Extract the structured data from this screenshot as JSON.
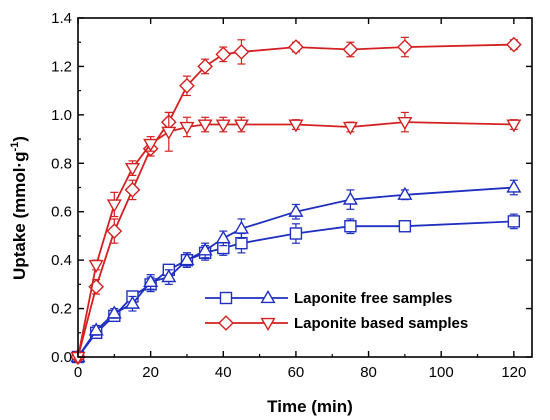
{
  "chart_data": {
    "type": "line",
    "xlabel": "Time (min)",
    "ylabel_main": "Uptake (mmol·g",
    "ylabel_sup": "-1",
    "ylabel_close": ")",
    "xlim": [
      0,
      125
    ],
    "ylim": [
      0,
      1.4
    ],
    "xticks": [
      0,
      20,
      40,
      60,
      80,
      100,
      120
    ],
    "yticks": [
      0.0,
      0.2,
      0.4,
      0.6,
      0.8,
      1.0,
      1.2,
      1.4
    ],
    "xtick_labels": [
      "0",
      "20",
      "40",
      "60",
      "80",
      "100",
      "120"
    ],
    "ytick_labels": [
      "0.0",
      "0.2",
      "0.4",
      "0.6",
      "0.8",
      "1.0",
      "1.2",
      "1.4"
    ],
    "legend_placement": "bottom-right",
    "series": [
      {
        "marker": "square",
        "color": "#1f2fbf",
        "x": [
          0,
          5,
          10,
          15,
          20,
          25,
          30,
          35,
          40,
          45,
          60,
          75,
          90,
          120
        ],
        "y": [
          0.0,
          0.1,
          0.17,
          0.25,
          0.3,
          0.36,
          0.4,
          0.43,
          0.45,
          0.47,
          0.51,
          0.54,
          0.54,
          0.56
        ],
        "err": [
          0.01,
          0.02,
          0.02,
          0.02,
          0.03,
          0.02,
          0.03,
          0.03,
          0.03,
          0.04,
          0.04,
          0.03,
          0.02,
          0.03
        ]
      },
      {
        "marker": "triangle-up",
        "color": "#1f2fbf",
        "x": [
          0,
          5,
          10,
          15,
          20,
          25,
          30,
          35,
          40,
          45,
          60,
          75,
          90,
          120
        ],
        "y": [
          0.0,
          0.11,
          0.18,
          0.22,
          0.31,
          0.33,
          0.4,
          0.44,
          0.49,
          0.53,
          0.6,
          0.65,
          0.67,
          0.7
        ],
        "err": [
          0.01,
          0.02,
          0.02,
          0.03,
          0.03,
          0.03,
          0.03,
          0.03,
          0.03,
          0.04,
          0.03,
          0.04,
          0.02,
          0.03
        ]
      },
      {
        "marker": "diamond",
        "color": "#d42020",
        "x": [
          0,
          5,
          10,
          15,
          20,
          25,
          30,
          35,
          40,
          45,
          60,
          75,
          90,
          120
        ],
        "y": [
          0.0,
          0.29,
          0.52,
          0.69,
          0.86,
          0.97,
          1.12,
          1.2,
          1.25,
          1.26,
          1.28,
          1.27,
          1.28,
          1.29
        ],
        "err": [
          0.01,
          0.03,
          0.05,
          0.04,
          0.03,
          0.04,
          0.04,
          0.03,
          0.03,
          0.05,
          0.02,
          0.03,
          0.04,
          0.02
        ]
      },
      {
        "marker": "triangle-down",
        "color": "#d42020",
        "x": [
          0,
          5,
          10,
          15,
          20,
          25,
          30,
          35,
          40,
          45,
          60,
          75,
          90,
          120
        ],
        "y": [
          0.0,
          0.38,
          0.63,
          0.78,
          0.88,
          0.93,
          0.95,
          0.96,
          0.96,
          0.96,
          0.96,
          0.95,
          0.97,
          0.96
        ],
        "err": [
          0.01,
          0.02,
          0.05,
          0.03,
          0.03,
          0.08,
          0.04,
          0.03,
          0.03,
          0.03,
          0.02,
          0.02,
          0.04,
          0.02
        ]
      }
    ],
    "legend": [
      {
        "label": "Laponite free samples",
        "color": "#1f2fbf",
        "markers": [
          "square",
          "triangle-up"
        ]
      },
      {
        "label": "Laponite based samples",
        "color": "#d42020",
        "markers": [
          "diamond",
          "triangle-down"
        ]
      }
    ]
  }
}
